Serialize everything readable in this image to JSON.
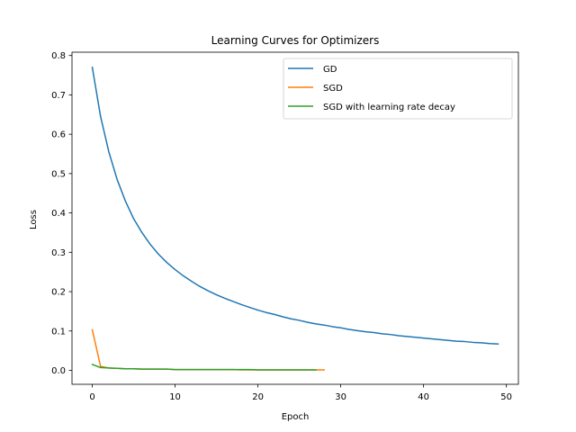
{
  "chart_data": {
    "type": "line",
    "title": "Learning Curves for Optimizers",
    "xlabel": "Epoch",
    "ylabel": "Loss",
    "xlim": [
      -2.45,
      51.45
    ],
    "ylim": [
      -0.0355,
      0.8085
    ],
    "xticks": [
      0,
      10,
      20,
      30,
      40,
      50
    ],
    "yticks": [
      0.0,
      0.1,
      0.2,
      0.3,
      0.4,
      0.5,
      0.6,
      0.7,
      0.8
    ],
    "ytick_labels": [
      "0.0",
      "0.1",
      "0.2",
      "0.3",
      "0.4",
      "0.5",
      "0.6",
      "0.7",
      "0.8"
    ],
    "grid": false,
    "legend_position": "top-right",
    "series": [
      {
        "name": "GD",
        "color": "#1f77b4",
        "x": [
          0,
          1,
          2,
          3,
          4,
          5,
          6,
          7,
          8,
          9,
          10,
          11,
          12,
          13,
          14,
          15,
          16,
          17,
          18,
          19,
          20,
          21,
          22,
          23,
          24,
          25,
          26,
          27,
          28,
          29,
          30,
          31,
          32,
          33,
          34,
          35,
          36,
          37,
          38,
          39,
          40,
          41,
          42,
          43,
          44,
          45,
          46,
          47,
          48,
          49
        ],
        "values": [
          0.77,
          0.645,
          0.555,
          0.485,
          0.43,
          0.385,
          0.35,
          0.32,
          0.295,
          0.274,
          0.256,
          0.24,
          0.226,
          0.213,
          0.202,
          0.192,
          0.183,
          0.175,
          0.167,
          0.16,
          0.153,
          0.147,
          0.142,
          0.136,
          0.131,
          0.127,
          0.122,
          0.118,
          0.115,
          0.111,
          0.108,
          0.104,
          0.101,
          0.098,
          0.096,
          0.093,
          0.091,
          0.088,
          0.086,
          0.084,
          0.082,
          0.08,
          0.078,
          0.076,
          0.074,
          0.073,
          0.071,
          0.07,
          0.068,
          0.067
        ]
      },
      {
        "name": "SGD",
        "color": "#ff7f0e",
        "x": [
          0,
          1,
          2,
          3,
          4,
          5,
          6,
          7,
          8,
          9,
          10,
          11,
          12,
          13,
          14,
          15,
          16,
          17,
          18,
          19,
          20,
          21,
          22,
          23,
          24,
          25,
          26,
          27,
          28
        ],
        "values": [
          0.103,
          0.01,
          0.006,
          0.005,
          0.004,
          0.004,
          0.003,
          0.003,
          0.003,
          0.003,
          0.002,
          0.002,
          0.002,
          0.002,
          0.002,
          0.002,
          0.002,
          0.002,
          0.001,
          0.001,
          0.001,
          0.001,
          0.001,
          0.001,
          0.001,
          0.001,
          0.001,
          0.001,
          0.001
        ]
      },
      {
        "name": "SGD with learning rate decay",
        "color": "#2ca02c",
        "x": [
          0,
          1,
          2,
          3,
          4,
          5,
          6,
          7,
          8,
          9,
          10,
          11,
          12,
          13,
          14,
          15,
          16,
          17,
          18,
          19,
          20,
          21,
          22,
          23,
          24,
          25,
          26,
          27
        ],
        "values": [
          0.015,
          0.007,
          0.006,
          0.005,
          0.004,
          0.004,
          0.003,
          0.003,
          0.003,
          0.003,
          0.002,
          0.002,
          0.002,
          0.002,
          0.002,
          0.002,
          0.002,
          0.002,
          0.002,
          0.002,
          0.001,
          0.001,
          0.001,
          0.001,
          0.001,
          0.001,
          0.001,
          0.001
        ]
      }
    ]
  }
}
